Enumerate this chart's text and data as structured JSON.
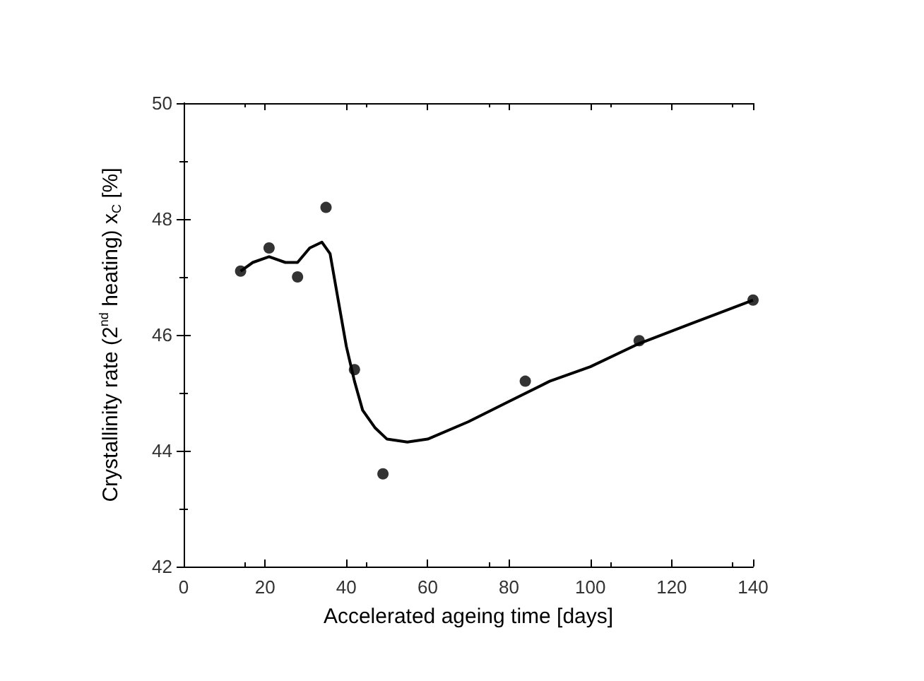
{
  "chart_data": {
    "type": "scatter",
    "xlabel": "Accelerated ageing time [days]",
    "ylabel": "Crystallinity rate (2$^{nd}$ heating) x$_{C}$ [%]",
    "xlim": [
      0,
      140
    ],
    "xticks": [
      0,
      20,
      40,
      60,
      80,
      100,
      120,
      140
    ],
    "ylim": [
      42,
      50
    ],
    "yticks": [
      42,
      44,
      46,
      48,
      50
    ],
    "series": [
      {
        "marker": "circle",
        "color": "#000000",
        "x": [
          14,
          21,
          28,
          35,
          42,
          49,
          84,
          112,
          140
        ],
        "values": [
          47.1,
          47.5,
          47.0,
          48.2,
          45.4,
          43.6,
          45.2,
          45.9,
          46.6
        ]
      },
      {
        "type": "line",
        "color": "#000000",
        "line_style": "solid",
        "x": [
          14,
          17,
          21,
          25,
          28,
          31,
          34,
          36,
          38,
          40,
          42,
          44,
          47,
          50,
          55,
          60,
          70,
          80,
          90,
          100,
          112,
          125,
          140
        ],
        "values": [
          47.1,
          47.25,
          47.35,
          47.25,
          47.25,
          47.5,
          47.6,
          47.4,
          46.6,
          45.8,
          45.2,
          44.7,
          44.4,
          44.2,
          44.15,
          44.2,
          44.5,
          44.85,
          45.2,
          45.45,
          45.85,
          46.2,
          46.6
        ]
      }
    ]
  }
}
